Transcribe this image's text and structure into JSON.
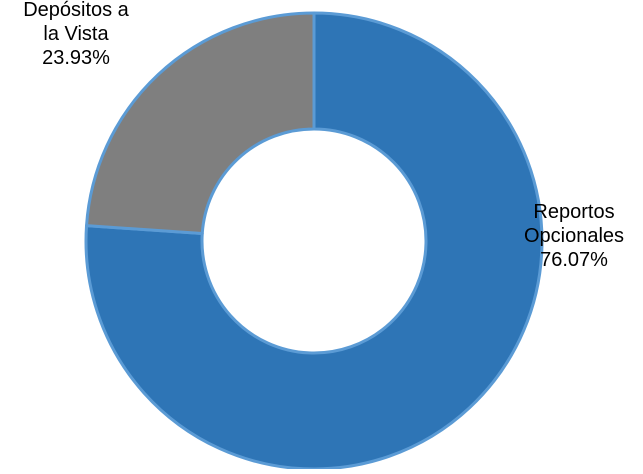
{
  "chart_data": {
    "type": "pie",
    "variant": "donut",
    "title": "",
    "legend": "none",
    "slices": [
      {
        "label_lines": [
          "Reportos",
          "Opcionales"
        ],
        "value_label": "76.07%",
        "value": 76.07,
        "color": "#2E75B6",
        "edge_color": "#5B9BD5"
      },
      {
        "label_lines": [
          "Depósitos a",
          "la Vista"
        ],
        "value_label": "23.93%",
        "value": 23.93,
        "color": "#7F7F7F",
        "edge_color": "#5B9BD5"
      }
    ]
  }
}
